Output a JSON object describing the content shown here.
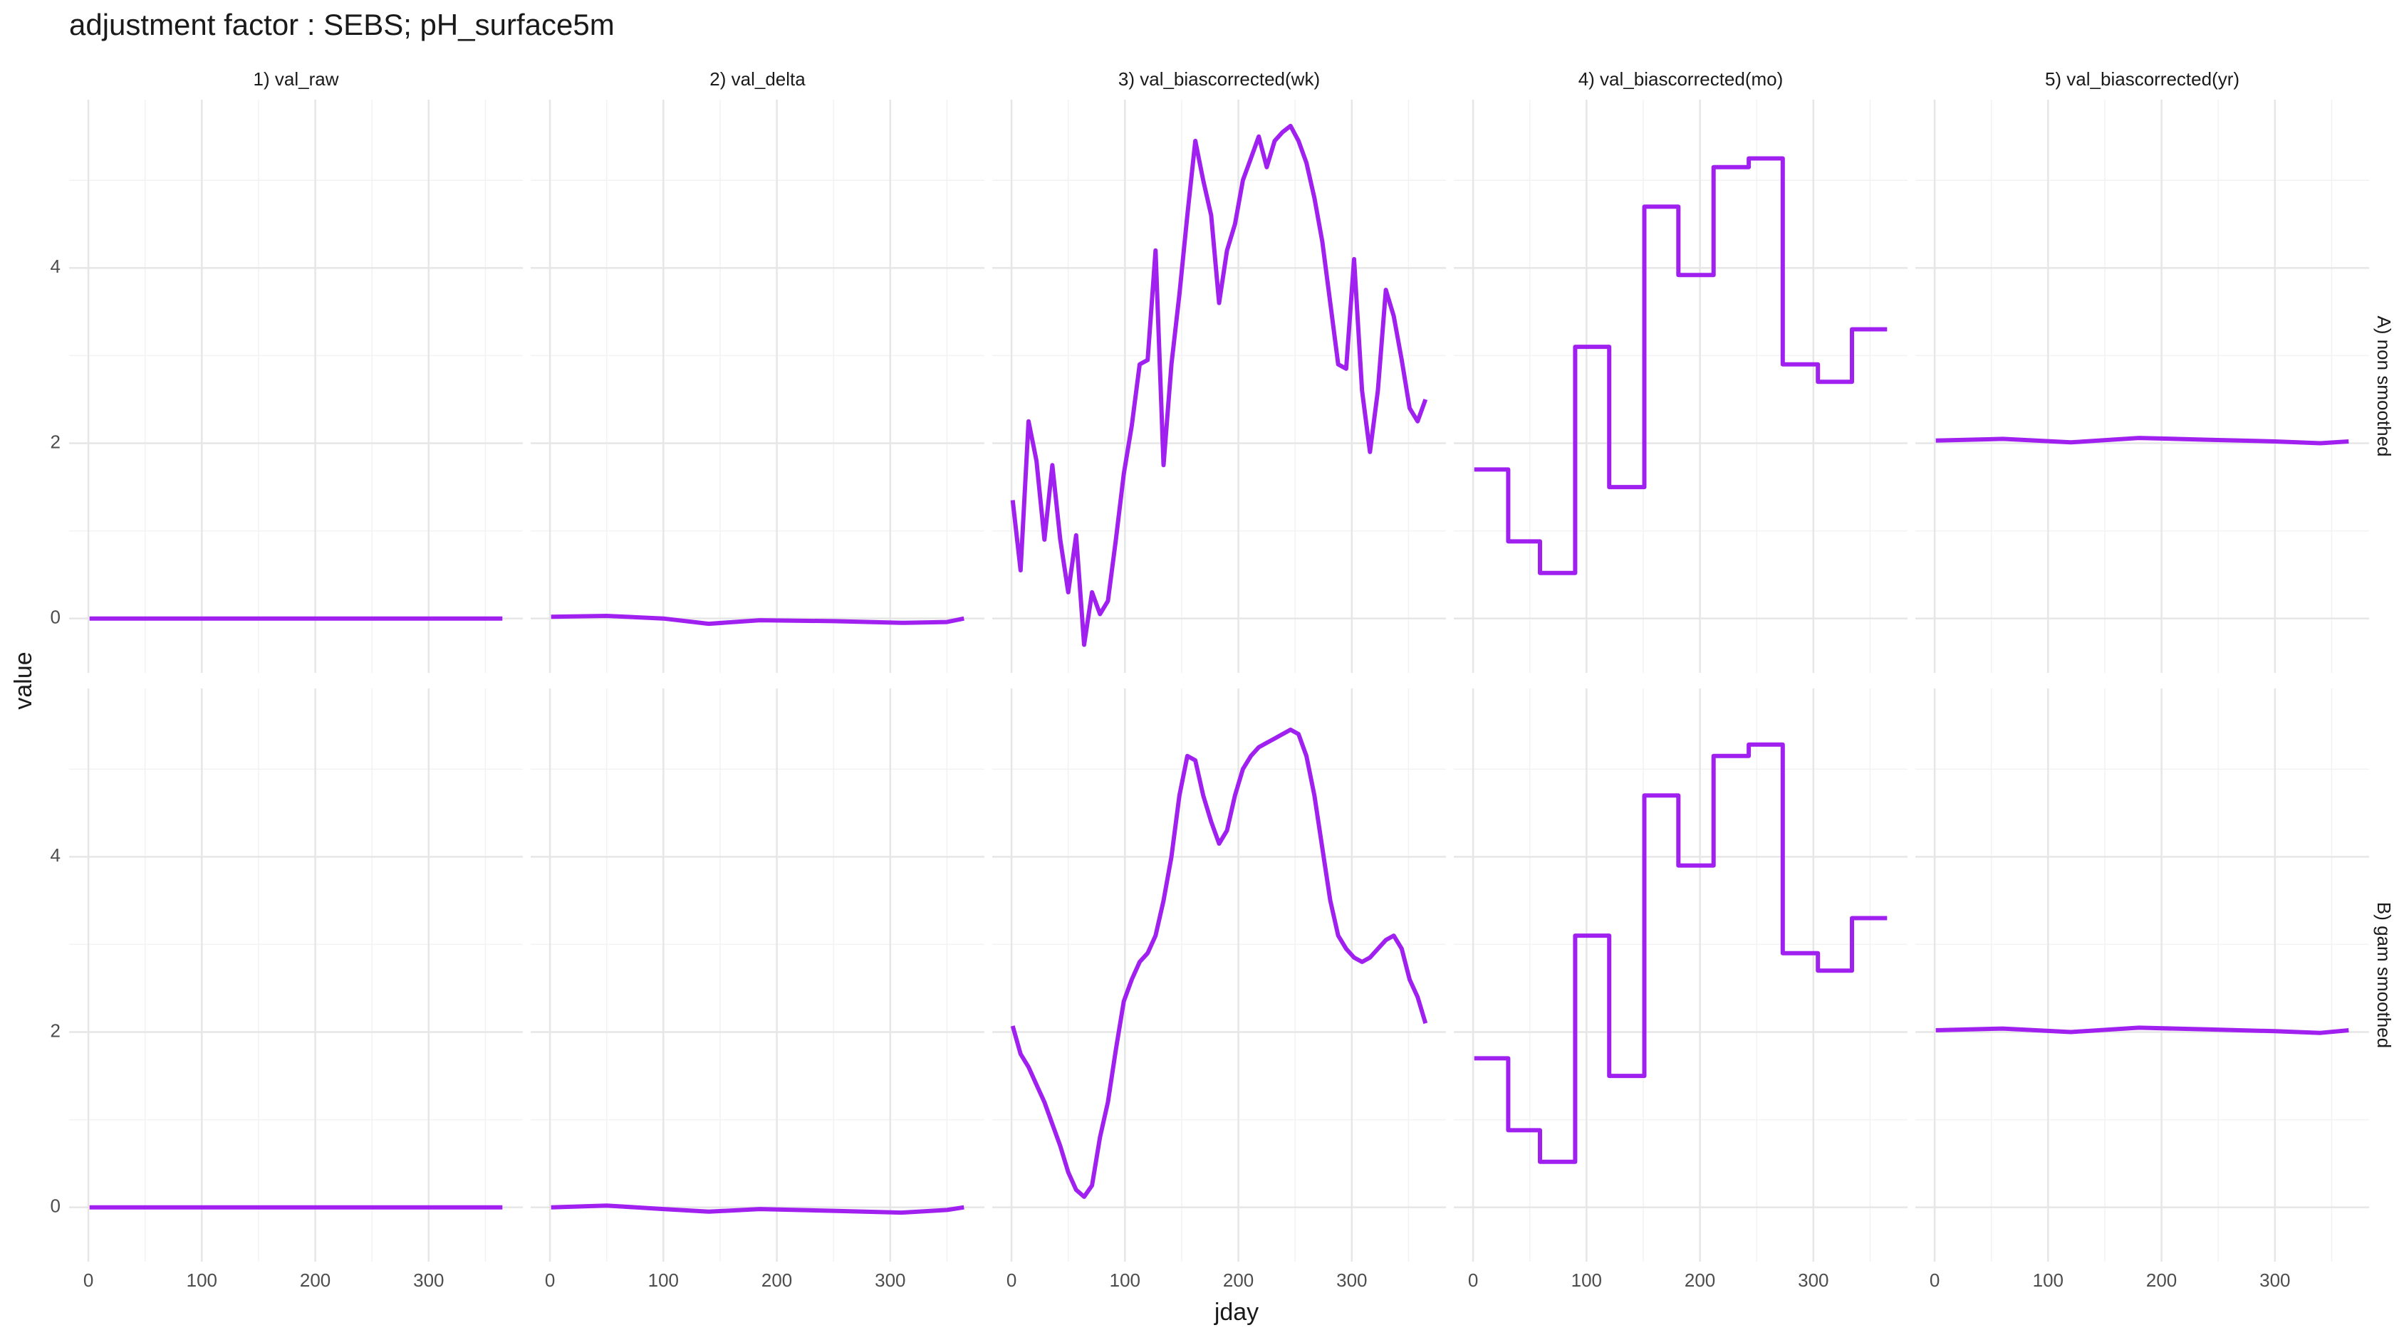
{
  "chart_data": {
    "type": "line",
    "title": "adjustment factor : SEBS; pH_surface5m",
    "xlabel": "jday",
    "ylabel": "value",
    "color": "#a020f0",
    "grid": true,
    "xlim": [
      -17,
      383
    ],
    "ylim": [
      -0.62,
      5.92
    ],
    "xticks": [
      0,
      100,
      200,
      300
    ],
    "yticks": [
      0,
      2,
      4
    ],
    "xminorticks": [
      50,
      150,
      250,
      350
    ],
    "yminorticks": [
      1,
      3,
      5
    ],
    "columns": [
      "1) val_raw",
      "2) val_delta",
      "3) val_biascorrected(wk)",
      "4) val_biascorrected(mo)",
      "5) val_biascorrected(yr)"
    ],
    "rows": [
      {
        "label": "A) non smoothed",
        "panels": [
          {
            "x": [
              1,
              365
            ],
            "values": [
              0,
              0
            ]
          },
          {
            "x": [
              1,
              50,
              100,
              140,
              185,
              250,
              310,
              350,
              365
            ],
            "values": [
              0.02,
              0.03,
              0.0,
              -0.06,
              -0.02,
              -0.03,
              -0.05,
              -0.04,
              0.0
            ]
          },
          {
            "x": [
              1,
              8,
              15,
              22,
              29,
              36,
              43,
              50,
              57,
              64,
              71,
              78,
              85,
              92,
              99,
              106,
              113,
              120,
              127,
              134,
              141,
              148,
              155,
              162,
              169,
              176,
              183,
              190,
              197,
              204,
              211,
              218,
              225,
              232,
              239,
              246,
              253,
              260,
              267,
              274,
              281,
              288,
              295,
              302,
              309,
              316,
              323,
              330,
              337,
              344,
              351,
              358,
              365
            ],
            "values": [
              1.35,
              0.55,
              2.25,
              1.8,
              0.9,
              1.75,
              0.9,
              0.3,
              0.95,
              -0.3,
              0.3,
              0.05,
              0.2,
              0.9,
              1.65,
              2.2,
              2.9,
              2.95,
              4.2,
              1.75,
              2.9,
              3.7,
              4.6,
              5.45,
              5.0,
              4.6,
              3.6,
              4.2,
              4.5,
              5.0,
              5.25,
              5.5,
              5.15,
              5.45,
              5.55,
              5.62,
              5.45,
              5.2,
              4.8,
              4.3,
              3.6,
              2.9,
              2.85,
              4.1,
              2.6,
              1.9,
              2.6,
              3.75,
              3.45,
              2.95,
              2.4,
              2.25,
              2.5
            ]
          },
          {
            "x": [
              1,
              31,
              31,
              59,
              59,
              90,
              90,
              120,
              120,
              151,
              151,
              181,
              181,
              212,
              212,
              243,
              243,
              273,
              273,
              304,
              304,
              334,
              334,
              365
            ],
            "values": [
              1.7,
              1.7,
              0.88,
              0.88,
              0.52,
              0.52,
              3.1,
              3.1,
              1.5,
              1.5,
              4.7,
              4.7,
              3.92,
              3.92,
              5.15,
              5.15,
              5.25,
              5.25,
              2.9,
              2.9,
              2.7,
              2.7,
              3.3,
              3.3
            ]
          },
          {
            "x": [
              1,
              60,
              120,
              180,
              240,
              300,
              340,
              365
            ],
            "values": [
              2.03,
              2.05,
              2.01,
              2.06,
              2.04,
              2.02,
              2.0,
              2.02
            ]
          }
        ]
      },
      {
        "label": "B) gam smoothed",
        "panels": [
          {
            "x": [
              1,
              365
            ],
            "values": [
              0,
              0
            ]
          },
          {
            "x": [
              1,
              50,
              100,
              140,
              185,
              250,
              310,
              350,
              365
            ],
            "values": [
              0.0,
              0.02,
              -0.02,
              -0.05,
              -0.02,
              -0.04,
              -0.06,
              -0.03,
              0.0
            ]
          },
          {
            "x": [
              1,
              8,
              15,
              22,
              29,
              36,
              43,
              50,
              57,
              64,
              71,
              78,
              85,
              92,
              99,
              106,
              113,
              120,
              127,
              134,
              141,
              148,
              155,
              162,
              169,
              176,
              183,
              190,
              197,
              204,
              211,
              218,
              225,
              232,
              239,
              246,
              253,
              260,
              267,
              274,
              281,
              288,
              295,
              302,
              309,
              316,
              323,
              330,
              337,
              344,
              351,
              358,
              365
            ],
            "values": [
              2.07,
              1.75,
              1.6,
              1.4,
              1.2,
              0.95,
              0.7,
              0.4,
              0.2,
              0.12,
              0.25,
              0.8,
              1.2,
              1.8,
              2.35,
              2.6,
              2.8,
              2.9,
              3.1,
              3.5,
              4.0,
              4.7,
              5.15,
              5.1,
              4.7,
              4.4,
              4.15,
              4.3,
              4.7,
              5.0,
              5.15,
              5.25,
              5.3,
              5.35,
              5.4,
              5.45,
              5.4,
              5.15,
              4.7,
              4.1,
              3.5,
              3.1,
              2.95,
              2.85,
              2.8,
              2.85,
              2.95,
              3.05,
              3.1,
              2.95,
              2.6,
              2.4,
              2.1
            ]
          },
          {
            "x": [
              1,
              31,
              31,
              59,
              59,
              90,
              90,
              120,
              120,
              151,
              151,
              181,
              181,
              212,
              212,
              243,
              243,
              273,
              273,
              304,
              304,
              334,
              334,
              365
            ],
            "values": [
              1.7,
              1.7,
              0.88,
              0.88,
              0.52,
              0.52,
              3.1,
              3.1,
              1.5,
              1.5,
              4.7,
              4.7,
              3.9,
              3.9,
              5.15,
              5.15,
              5.28,
              5.28,
              2.9,
              2.9,
              2.7,
              2.7,
              3.3,
              3.3
            ]
          },
          {
            "x": [
              1,
              60,
              120,
              180,
              240,
              300,
              340,
              365
            ],
            "values": [
              2.02,
              2.04,
              2.0,
              2.05,
              2.03,
              2.01,
              1.99,
              2.02
            ]
          }
        ]
      }
    ]
  }
}
